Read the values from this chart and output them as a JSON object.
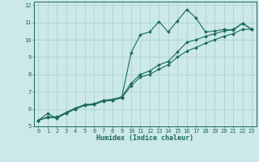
{
  "xlabel": "Humidex (Indice chaleur)",
  "bg_color": "#cce8e8",
  "line_color": "#1a6b5a",
  "grid_color": "#aad4d0",
  "axis_color": "#1a6b5a",
  "tick_label_color": "#1a6b5a",
  "xlim": [
    -0.5,
    23.5
  ],
  "ylim": [
    5.0,
    12.2
  ],
  "xticks": [
    0,
    1,
    2,
    3,
    4,
    5,
    6,
    7,
    8,
    9,
    10,
    11,
    12,
    13,
    14,
    15,
    16,
    17,
    18,
    19,
    20,
    21,
    22,
    23
  ],
  "yticks": [
    5,
    6,
    7,
    8,
    9,
    10,
    11,
    12
  ],
  "series1_x": [
    0,
    1,
    2,
    3,
    4,
    5,
    6,
    7,
    8,
    9,
    10,
    11,
    12,
    13,
    14,
    15,
    16,
    17,
    18,
    19,
    20,
    21,
    22,
    23
  ],
  "series1_y": [
    5.35,
    5.75,
    5.45,
    5.8,
    6.05,
    6.25,
    6.3,
    6.5,
    6.55,
    6.7,
    9.25,
    10.3,
    10.45,
    11.05,
    10.45,
    11.1,
    11.75,
    11.25,
    10.45,
    10.5,
    10.6,
    10.55,
    10.95,
    10.6
  ],
  "series2_x": [
    0,
    1,
    2,
    3,
    4,
    5,
    6,
    7,
    8,
    9,
    10,
    11,
    12,
    13,
    14,
    15,
    16,
    17,
    18,
    19,
    20,
    21,
    22,
    23
  ],
  "series2_y": [
    5.35,
    5.55,
    5.55,
    5.8,
    6.05,
    6.25,
    6.3,
    6.5,
    6.55,
    6.7,
    7.5,
    8.0,
    8.2,
    8.55,
    8.75,
    9.3,
    9.85,
    10.0,
    10.2,
    10.35,
    10.5,
    10.6,
    10.95,
    10.6
  ],
  "series3_x": [
    0,
    1,
    2,
    3,
    4,
    5,
    6,
    7,
    8,
    9,
    10,
    11,
    12,
    13,
    14,
    15,
    16,
    17,
    18,
    19,
    20,
    21,
    22,
    23
  ],
  "series3_y": [
    5.35,
    5.5,
    5.5,
    5.75,
    6.0,
    6.2,
    6.25,
    6.45,
    6.5,
    6.65,
    7.35,
    7.85,
    8.0,
    8.3,
    8.55,
    9.0,
    9.35,
    9.55,
    9.8,
    10.0,
    10.2,
    10.35,
    10.6,
    10.6
  ],
  "marker": "D",
  "markersize": 2.0,
  "linewidth": 0.8
}
